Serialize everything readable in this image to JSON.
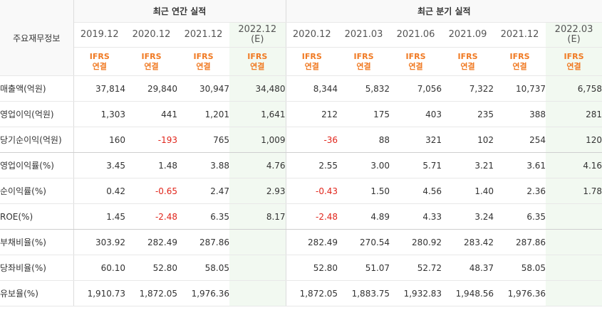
{
  "table": {
    "corner_label": "주요재무정보",
    "annual_group_label": "최근 연간 실적",
    "quarterly_group_label": "최근 분기 실적",
    "columns": [
      {
        "period": "2019.12",
        "sub": "",
        "std_top": "IFRS",
        "std_bottom": "연결",
        "est": false
      },
      {
        "period": "2020.12",
        "sub": "",
        "std_top": "IFRS",
        "std_bottom": "연결",
        "est": false
      },
      {
        "period": "2021.12",
        "sub": "",
        "std_top": "IFRS",
        "std_bottom": "연결",
        "est": false
      },
      {
        "period": "2022.12",
        "sub": "(E)",
        "std_top": "IFRS",
        "std_bottom": "연결",
        "est": true
      },
      {
        "period": "2020.12",
        "sub": "",
        "std_top": "IFRS",
        "std_bottom": "연결",
        "est": false
      },
      {
        "period": "2021.03",
        "sub": "",
        "std_top": "IFRS",
        "std_bottom": "연결",
        "est": false
      },
      {
        "period": "2021.06",
        "sub": "",
        "std_top": "IFRS",
        "std_bottom": "연결",
        "est": false
      },
      {
        "period": "2021.09",
        "sub": "",
        "std_top": "IFRS",
        "std_bottom": "연결",
        "est": false
      },
      {
        "period": "2021.12",
        "sub": "",
        "std_top": "IFRS",
        "std_bottom": "연결",
        "est": false
      },
      {
        "period": "2022.03",
        "sub": "(E)",
        "std_top": "IFRS",
        "std_bottom": "연결",
        "est": true
      }
    ],
    "rows": [
      {
        "label": "매출액(억원)",
        "values": [
          "37,814",
          "29,840",
          "30,947",
          "34,480",
          "8,344",
          "5,832",
          "7,056",
          "7,322",
          "10,737",
          "6,758"
        ]
      },
      {
        "label": "영업이익(억원)",
        "values": [
          "1,303",
          "441",
          "1,201",
          "1,641",
          "212",
          "175",
          "403",
          "235",
          "388",
          "281"
        ]
      },
      {
        "label": "당기순이익(억원)",
        "values": [
          "160",
          "-193",
          "765",
          "1,009",
          "-36",
          "88",
          "321",
          "102",
          "254",
          "120"
        ]
      },
      {
        "label": "영업이익률(%)",
        "values": [
          "3.45",
          "1.48",
          "3.88",
          "4.76",
          "2.55",
          "3.00",
          "5.71",
          "3.21",
          "3.61",
          "4.16"
        ]
      },
      {
        "label": "순이익률(%)",
        "values": [
          "0.42",
          "-0.65",
          "2.47",
          "2.93",
          "-0.43",
          "1.50",
          "4.56",
          "1.40",
          "2.36",
          "1.78"
        ]
      },
      {
        "label": "ROE(%)",
        "values": [
          "1.45",
          "-2.48",
          "6.35",
          "8.17",
          "-2.48",
          "4.89",
          "4.33",
          "3.24",
          "6.35",
          ""
        ]
      },
      {
        "label": "부채비율(%)",
        "values": [
          "303.92",
          "282.49",
          "287.86",
          "",
          "282.49",
          "270.54",
          "280.92",
          "283.42",
          "287.86",
          ""
        ]
      },
      {
        "label": "당좌비율(%)",
        "values": [
          "60.10",
          "52.80",
          "58.05",
          "",
          "52.80",
          "51.07",
          "52.72",
          "48.37",
          "58.05",
          ""
        ]
      },
      {
        "label": "유보율(%)",
        "values": [
          "1,910.73",
          "1,872.05",
          "1,976.36",
          "",
          "1,872.05",
          "1,883.75",
          "1,932.83",
          "1,948.56",
          "1,976.36",
          ""
        ]
      }
    ]
  }
}
